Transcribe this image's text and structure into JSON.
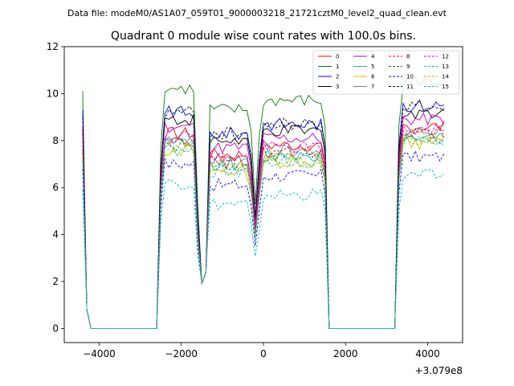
{
  "header": {
    "file_label": "Data file: modeM0/AS1A07_059T01_9000003218_21721cztM0_level2_quad_clean.evt"
  },
  "chart_data": {
    "type": "line",
    "title": "Quadrant 0 module wise count rates with 100.0s bins.",
    "xlabel": "",
    "ylabel": "",
    "x_offset_label": "+3.079e8",
    "xlim": [
      -4850,
      4850
    ],
    "ylim": [
      -0.6,
      12
    ],
    "xticks": [
      -4000,
      -2000,
      0,
      2000,
      4000
    ],
    "xtick_labels": [
      "−4000",
      "−2000",
      "0",
      "2000",
      "4000"
    ],
    "yticks": [
      0,
      2,
      4,
      6,
      8,
      10,
      12
    ],
    "ytick_labels": [
      "0",
      "2",
      "4",
      "6",
      "8",
      "10",
      "12"
    ],
    "grid": false,
    "legend_position": "top-right",
    "series": [
      {
        "name": "0",
        "color": "#ff0000",
        "dash": "solid",
        "base": 7.7,
        "peak": 8.5
      },
      {
        "name": "1",
        "color": "#008000",
        "dash": "solid",
        "base": 9.6,
        "peak": 10.1
      },
      {
        "name": "2",
        "color": "#0000ff",
        "dash": "solid",
        "base": 8.6,
        "peak": 9.3
      },
      {
        "name": "3",
        "color": "#000000",
        "dash": "solid",
        "base": 8.3,
        "peak": 8.6
      },
      {
        "name": "4",
        "color": "#bf00bf",
        "dash": "solid",
        "base": 8.0,
        "peak": 8.6
      },
      {
        "name": "5",
        "color": "#20b2aa",
        "dash": "solid",
        "base": 7.3,
        "peak": 7.5
      },
      {
        "name": "6",
        "color": "#bfbf00",
        "dash": "solid",
        "base": 7.0,
        "peak": 7.2
      },
      {
        "name": "7",
        "color": "#808080",
        "dash": "solid",
        "base": 7.5,
        "peak": 7.6
      },
      {
        "name": "8",
        "color": "#ff0000",
        "dash": "dashed",
        "base": 7.4,
        "peak": 8.0
      },
      {
        "name": "9",
        "color": "#008000",
        "dash": "dashed",
        "base": 7.2,
        "peak": 7.5
      },
      {
        "name": "10",
        "color": "#0000ff",
        "dash": "dashed",
        "base": 6.4,
        "peak": 6.8
      },
      {
        "name": "11",
        "color": "#000000",
        "dash": "dashed",
        "base": 8.6,
        "peak": 9.0
      },
      {
        "name": "12",
        "color": "#bf00bf",
        "dash": "dashed",
        "base": 7.6,
        "peak": 8.0
      },
      {
        "name": "13",
        "color": "#00bfbf",
        "dash": "dashed",
        "base": 5.6,
        "peak": 5.9
      },
      {
        "name": "14",
        "color": "#bfbf00",
        "dash": "dashed",
        "base": 7.1,
        "peak": 7.4
      },
      {
        "name": "15",
        "color": "#00bfbf",
        "dash": "dashed",
        "base": 7.0,
        "peak": 7.2
      }
    ]
  }
}
